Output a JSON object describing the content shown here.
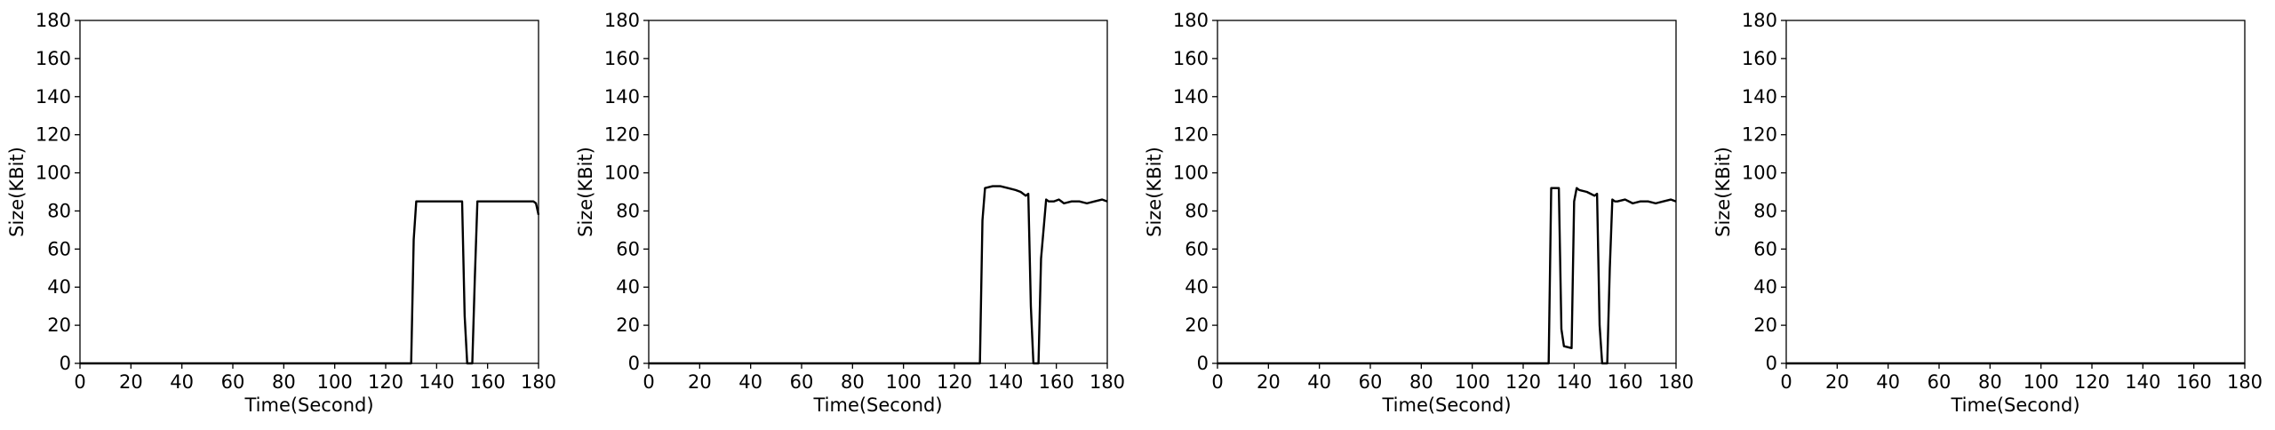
{
  "chart_data": [
    {
      "type": "line",
      "xlabel": "Time(Second)",
      "ylabel": "Size(KBit)",
      "xlim": [
        0,
        180
      ],
      "ylim": [
        0,
        180
      ],
      "xticks": [
        0,
        20,
        40,
        60,
        80,
        100,
        120,
        140,
        160,
        180
      ],
      "yticks": [
        0,
        20,
        40,
        60,
        80,
        100,
        120,
        140,
        160,
        180
      ],
      "grid": false,
      "color": "#000000",
      "series": [
        {
          "x": [
            0,
            129,
            130,
            131,
            132,
            135,
            140,
            145,
            149,
            150,
            151,
            152,
            154,
            155,
            156,
            157,
            160,
            165,
            170,
            175,
            178,
            179,
            180
          ],
          "values": [
            0,
            0,
            0,
            65,
            85,
            85,
            85,
            85,
            85,
            85,
            25,
            0,
            0,
            45,
            85,
            85,
            85,
            85,
            85,
            85,
            85,
            84,
            78
          ]
        }
      ]
    },
    {
      "type": "line",
      "xlabel": "Time(Second)",
      "ylabel": "Size(KBit)",
      "xlim": [
        0,
        180
      ],
      "ylim": [
        0,
        180
      ],
      "xticks": [
        0,
        20,
        40,
        60,
        80,
        100,
        120,
        140,
        160,
        180
      ],
      "yticks": [
        0,
        20,
        40,
        60,
        80,
        100,
        120,
        140,
        160,
        180
      ],
      "grid": false,
      "color": "#000000",
      "series": [
        {
          "x": [
            0,
            129,
            130,
            131,
            132,
            135,
            138,
            141,
            144,
            146,
            148,
            149,
            150,
            151,
            152,
            153,
            154,
            156,
            157,
            159,
            161,
            163,
            166,
            169,
            172,
            175,
            178,
            180
          ],
          "values": [
            0,
            0,
            0,
            75,
            92,
            93,
            93,
            92,
            91,
            90,
            88,
            89,
            30,
            0,
            0,
            0,
            55,
            86,
            85,
            85,
            86,
            84,
            85,
            85,
            84,
            85,
            86,
            85
          ]
        }
      ]
    },
    {
      "type": "line",
      "xlabel": "Time(Second)",
      "ylabel": "Size(KBit)",
      "xlim": [
        0,
        180
      ],
      "ylim": [
        0,
        180
      ],
      "xticks": [
        0,
        20,
        40,
        60,
        80,
        100,
        120,
        140,
        160,
        180
      ],
      "yticks": [
        0,
        20,
        40,
        60,
        80,
        100,
        120,
        140,
        160,
        180
      ],
      "grid": false,
      "color": "#000000",
      "series": [
        {
          "x": [
            0,
            129,
            130,
            131,
            134,
            135,
            136,
            139,
            140,
            141,
            142,
            145,
            148,
            149,
            150,
            151,
            152,
            153,
            154,
            155,
            156,
            157,
            160,
            163,
            166,
            169,
            172,
            175,
            178,
            180
          ],
          "values": [
            0,
            0,
            0,
            92,
            92,
            18,
            9,
            8,
            85,
            92,
            91,
            90,
            88,
            89,
            20,
            0,
            0,
            0,
            50,
            86,
            85,
            85,
            86,
            84,
            85,
            85,
            84,
            85,
            86,
            85
          ]
        }
      ]
    },
    {
      "type": "line",
      "xlabel": "Time(Second)",
      "ylabel": "Size(KBit)",
      "xlim": [
        0,
        180
      ],
      "ylim": [
        0,
        180
      ],
      "xticks": [
        0,
        20,
        40,
        60,
        80,
        100,
        120,
        140,
        160,
        180
      ],
      "yticks": [
        0,
        20,
        40,
        60,
        80,
        100,
        120,
        140,
        160,
        180
      ],
      "grid": false,
      "color": "#000000",
      "series": [
        {
          "x": [
            0,
            180
          ],
          "values": [
            0,
            0
          ]
        }
      ]
    }
  ]
}
